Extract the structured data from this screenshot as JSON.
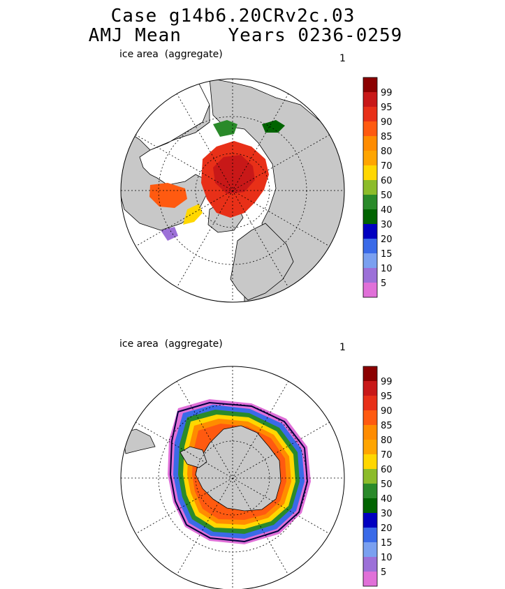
{
  "title": {
    "line1": "Case g14b6.20CRv2c.03",
    "line2": "AMJ Mean    Years 0236-0259"
  },
  "panels": [
    {
      "id": "north",
      "label": "ice area  (aggregate)",
      "number": "1",
      "hemisphere": "Northern"
    },
    {
      "id": "south",
      "label": "ice area  (aggregate)",
      "number": "1",
      "hemisphere": "Southern"
    }
  ],
  "colorbar": {
    "levels": [
      "5",
      "10",
      "15",
      "20",
      "30",
      "40",
      "50",
      "60",
      "70",
      "80",
      "85",
      "90",
      "95",
      "99"
    ],
    "colors": [
      "#e070d8",
      "#9c70d8",
      "#7aa0f0",
      "#3a6ae8",
      "#0000c0",
      "#006400",
      "#2a8a2a",
      "#8cbc2a",
      "#ffd700",
      "#ffa500",
      "#ff8c00",
      "#ff5a10",
      "#e83018",
      "#c81818",
      "#8b0000"
    ]
  },
  "map_colors": {
    "land": "#c8c8c8",
    "ocean": "#ffffff",
    "outline": "#000000",
    "ice_edge": "#000040"
  }
}
